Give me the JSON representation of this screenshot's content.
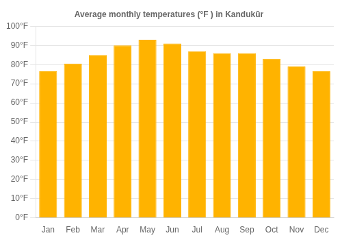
{
  "chart_data": {
    "type": "bar",
    "title": "Average monthly temperatures (°F ) in Kandukūr",
    "categories": [
      "Jan",
      "Feb",
      "Mar",
      "Apr",
      "May",
      "Jun",
      "Jul",
      "Aug",
      "Sep",
      "Oct",
      "Nov",
      "Dec"
    ],
    "values": [
      76.5,
      80.5,
      85.0,
      90.0,
      93.0,
      91.0,
      87.0,
      86.0,
      86.0,
      83.0,
      79.0,
      76.5
    ],
    "color": "#FFB300",
    "ylim": [
      0,
      100
    ],
    "yticks": [
      {
        "value": 0,
        "label": "0°F"
      },
      {
        "value": 10,
        "label": "10°F"
      },
      {
        "value": 20,
        "label": "20°F"
      },
      {
        "value": 30,
        "label": "30°F"
      },
      {
        "value": 40,
        "label": "40°F"
      },
      {
        "value": 50,
        "label": "50°F"
      },
      {
        "value": 60,
        "label": "60°F"
      },
      {
        "value": 70,
        "label": "70°F"
      },
      {
        "value": 80,
        "label": "80°F"
      },
      {
        "value": 90,
        "label": "90°F"
      },
      {
        "value": 100,
        "label": "100°F"
      }
    ],
    "grid": true
  }
}
